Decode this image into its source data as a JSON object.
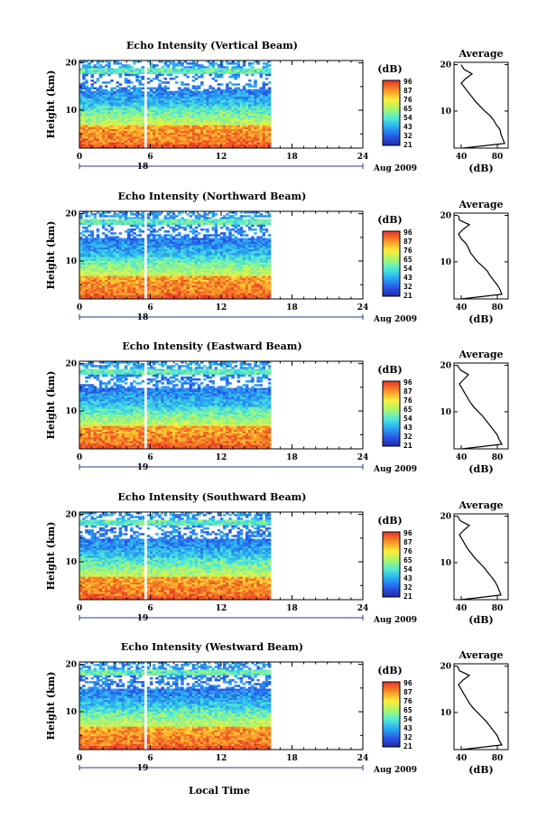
{
  "chart_data": [
    {
      "type": "heatmap",
      "title": "Echo Intensity (Vertical Beam)",
      "ylabel": "Height (km)",
      "xticks": [
        "0",
        "6",
        "12",
        "18",
        "24",
        "0"
      ],
      "yticks": [
        "10",
        "20"
      ],
      "date_label": "Aug 2009",
      "day_label": "18",
      "colorbar_unit": "(dB)",
      "colorbar_ticks": [
        "96",
        "87",
        "76",
        "65",
        "54",
        "43",
        "32",
        "21"
      ],
      "data_gap_hour": 5.6,
      "data_end_hour": 16.2,
      "average_title": "Average",
      "average_xlabel": "(dB)",
      "average_xticks": [
        "40",
        "80"
      ],
      "average_yticks": [
        "10",
        "20"
      ],
      "average_profile": {
        "height_km": [
          2,
          3,
          4,
          5,
          6,
          7,
          8,
          9,
          10,
          11,
          12,
          13,
          14,
          15,
          16,
          17,
          18,
          19,
          20
        ],
        "db": [
          42,
          88,
          86,
          84,
          83,
          79,
          76,
          72,
          66,
          61,
          56,
          52,
          48,
          44,
          40,
          45,
          52,
          43,
          40
        ]
      }
    },
    {
      "type": "heatmap",
      "title": "Echo Intensity (Northward Beam)",
      "ylabel": "Height (km)",
      "xticks": [
        "0",
        "6",
        "12",
        "18",
        "24",
        "0"
      ],
      "yticks": [
        "10",
        "20"
      ],
      "date_label": "Aug 2009",
      "day_label": "18",
      "colorbar_unit": "(dB)",
      "colorbar_ticks": [
        "96",
        "87",
        "76",
        "65",
        "54",
        "43",
        "32",
        "21"
      ],
      "data_gap_hour": 5.6,
      "data_end_hour": 16.2,
      "average_title": "Average",
      "average_xlabel": "(dB)",
      "average_xticks": [
        "40",
        "80"
      ],
      "average_yticks": [
        "10",
        "20"
      ],
      "average_profile": {
        "height_km": [
          2,
          3,
          4,
          5,
          6,
          7,
          8,
          9,
          10,
          11,
          12,
          13,
          14,
          15,
          16,
          17,
          18,
          19,
          20
        ],
        "db": [
          40,
          85,
          83,
          80,
          76,
          72,
          69,
          64,
          58,
          54,
          50,
          48,
          45,
          40,
          37,
          42,
          49,
          38,
          37
        ]
      }
    },
    {
      "type": "heatmap",
      "title": "Echo Intensity (Eastward Beam)",
      "ylabel": "Height (km)",
      "xticks": [
        "0",
        "6",
        "12",
        "18",
        "24",
        "0"
      ],
      "yticks": [
        "10",
        "20"
      ],
      "date_label": "Aug 2009",
      "day_label": "19",
      "colorbar_unit": "(dB)",
      "colorbar_ticks": [
        "96",
        "87",
        "76",
        "65",
        "54",
        "43",
        "32",
        "21"
      ],
      "data_gap_hour": 5.6,
      "data_end_hour": 16.2,
      "average_title": "Average",
      "average_xlabel": "(dB)",
      "average_xticks": [
        "40",
        "80"
      ],
      "average_yticks": [
        "10",
        "20"
      ],
      "average_profile": {
        "height_km": [
          2,
          3,
          4,
          5,
          6,
          7,
          8,
          9,
          10,
          11,
          12,
          13,
          14,
          15,
          16,
          17,
          18,
          19,
          20
        ],
        "db": [
          41,
          85,
          82,
          80,
          76,
          72,
          68,
          64,
          59,
          54,
          50,
          47,
          44,
          41,
          38,
          43,
          48,
          39,
          36
        ]
      }
    },
    {
      "type": "heatmap",
      "title": "Echo Intensity (Southward Beam)",
      "ylabel": "Height (km)",
      "xticks": [
        "0",
        "6",
        "12",
        "18",
        "24",
        "0"
      ],
      "yticks": [
        "10",
        "20"
      ],
      "date_label": "Aug 2009",
      "day_label": "19",
      "colorbar_unit": "(dB)",
      "colorbar_ticks": [
        "96",
        "87",
        "76",
        "65",
        "54",
        "43",
        "32",
        "21"
      ],
      "data_gap_hour": 5.6,
      "data_end_hour": 16.2,
      "average_title": "Average",
      "average_xlabel": "(dB)",
      "average_xticks": [
        "40",
        "80"
      ],
      "average_yticks": [
        "10",
        "20"
      ],
      "average_profile": {
        "height_km": [
          2,
          3,
          4,
          5,
          6,
          7,
          8,
          9,
          10,
          11,
          12,
          13,
          14,
          15,
          16,
          17,
          18,
          19,
          20
        ],
        "db": [
          40,
          84,
          82,
          80,
          77,
          73,
          69,
          65,
          60,
          55,
          51,
          47,
          44,
          41,
          38,
          43,
          49,
          39,
          36
        ]
      }
    },
    {
      "type": "heatmap",
      "title": "Echo Intensity (Westward Beam)",
      "ylabel": "Height (km)",
      "xticks": [
        "0",
        "6",
        "12",
        "18",
        "24",
        "0"
      ],
      "yticks": [
        "10",
        "20"
      ],
      "date_label": "Aug 2009",
      "day_label": "19",
      "colorbar_unit": "(dB)",
      "colorbar_ticks": [
        "96",
        "87",
        "76",
        "65",
        "54",
        "43",
        "32",
        "21"
      ],
      "data_gap_hour": 5.6,
      "data_end_hour": 16.2,
      "average_title": "Average",
      "average_xlabel": "(dB)",
      "average_xticks": [
        "40",
        "80"
      ],
      "average_yticks": [
        "10",
        "20"
      ],
      "average_profile": {
        "height_km": [
          2,
          3,
          4,
          5,
          6,
          7,
          8,
          9,
          10,
          11,
          12,
          13,
          14,
          15,
          16,
          17,
          18,
          19,
          20
        ],
        "db": [
          40,
          85,
          82,
          80,
          76,
          72,
          68,
          63,
          58,
          53,
          49,
          46,
          43,
          40,
          37,
          42,
          49,
          38,
          36
        ]
      }
    }
  ],
  "xlabel": "Local Time"
}
